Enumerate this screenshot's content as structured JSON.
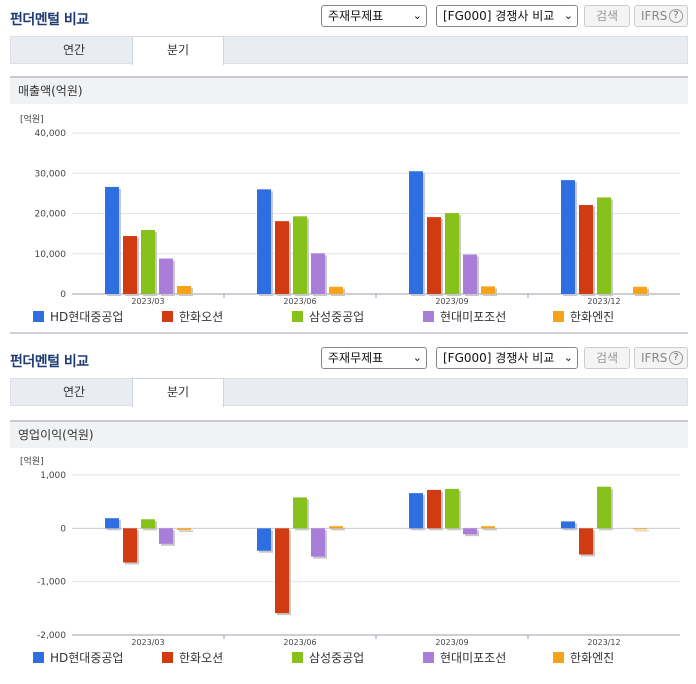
{
  "panels": [
    {
      "title": "펀더멘털 비교",
      "select_statement": "주재무제표",
      "select_group": "[FG000] 경쟁사 비교",
      "search_label": "검색",
      "ifrs_label": "IFRS",
      "help_icon_text": "?",
      "tabs": [
        {
          "label": "연간"
        },
        {
          "label": "분기"
        }
      ],
      "active_tab": 1,
      "section_label": "매출액(억원)"
    },
    {
      "title": "펀더멘털 비교",
      "select_statement": "주재무제표",
      "select_group": "[FG000] 경쟁사 비교",
      "search_label": "검색",
      "ifrs_label": "IFRS",
      "help_icon_text": "?",
      "tabs": [
        {
          "label": "연간"
        },
        {
          "label": "분기"
        }
      ],
      "active_tab": 1,
      "section_label": "영업이익(억원)"
    }
  ],
  "colors": {
    "HD현대중공업": "#2f6ee0",
    "한화오션": "#d03b11",
    "삼성중공업": "#86c21b",
    "현대미포조선": "#a97ed8",
    "한화엔진": "#f7a21b"
  },
  "chart_data": [
    {
      "type": "bar",
      "title": "매출액(억원)",
      "unit_label": "[억원]",
      "categories": [
        "2023/03",
        "2023/06",
        "2023/09",
        "2023/12"
      ],
      "ylim": [
        0,
        40000
      ],
      "yticks": [
        0,
        10000,
        20000,
        30000,
        40000
      ],
      "ytick_labels": [
        "0",
        "10,000",
        "20,000",
        "30,000",
        "40,000"
      ],
      "grid": true,
      "legend": "bottom",
      "series": [
        {
          "name": "HD현대중공업",
          "values": [
            26600,
            26000,
            30500,
            28300
          ]
        },
        {
          "name": "한화오션",
          "values": [
            14400,
            18100,
            19100,
            22100
          ]
        },
        {
          "name": "삼성중공업",
          "values": [
            15900,
            19300,
            20100,
            24000
          ]
        },
        {
          "name": "현대미포조선",
          "values": [
            8800,
            10100,
            9800,
            null
          ]
        },
        {
          "name": "한화엔진",
          "values": [
            2000,
            1800,
            1900,
            1800
          ]
        }
      ]
    },
    {
      "type": "bar",
      "title": "영업이익(억원)",
      "unit_label": "[억원]",
      "categories": [
        "2023/03",
        "2023/06",
        "2023/09",
        "2023/12"
      ],
      "ylim": [
        -2000,
        1000
      ],
      "yticks": [
        -2000,
        -1000,
        0,
        1000
      ],
      "ytick_labels": [
        "-2,000",
        "-1,000",
        "0",
        "1,000"
      ],
      "grid": true,
      "legend": "bottom",
      "series": [
        {
          "name": "HD현대중공업",
          "values": [
            190,
            -420,
            660,
            130
          ]
        },
        {
          "name": "한화오션",
          "values": [
            -640,
            -1590,
            720,
            -490
          ]
        },
        {
          "name": "삼성중공업",
          "values": [
            170,
            580,
            740,
            780
          ]
        },
        {
          "name": "현대미포조선",
          "values": [
            -290,
            -530,
            -110,
            null
          ]
        },
        {
          "name": "한화엔진",
          "values": [
            -30,
            40,
            40,
            0
          ]
        }
      ]
    }
  ]
}
